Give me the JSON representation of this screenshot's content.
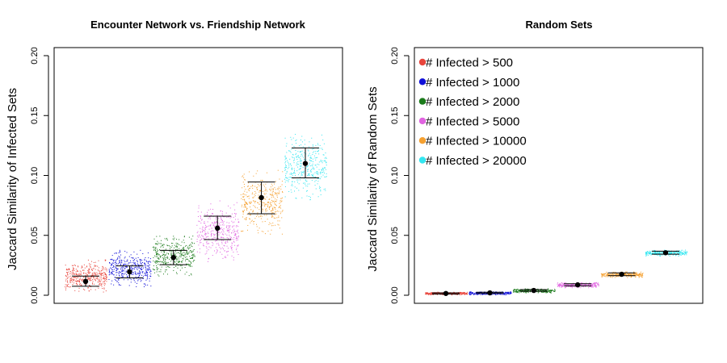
{
  "chart_data": [
    {
      "type": "scatter",
      "title": "Encounter Network vs. Friendship Network",
      "xlabel": "",
      "ylabel": "Jaccard Similarity of Infected Sets",
      "ylim": [
        0,
        0.2
      ],
      "yticks": [
        "0.00",
        "0.05",
        "0.10",
        "0.15",
        "0.20"
      ],
      "grid": false,
      "series": [
        {
          "color": "#e8453c",
          "mean": 0.0115,
          "ci_low": 0.0075,
          "ci_high": 0.016,
          "spread_low": 0.003,
          "spread_high": 0.03
        },
        {
          "color": "#1010d8",
          "mean": 0.0195,
          "ci_low": 0.0145,
          "ci_high": 0.0245,
          "spread_low": 0.007,
          "spread_high": 0.038
        },
        {
          "color": "#1a7a1a",
          "mean": 0.0315,
          "ci_low": 0.0255,
          "ci_high": 0.0375,
          "spread_low": 0.016,
          "spread_high": 0.05
        },
        {
          "color": "#e063e0",
          "mean": 0.056,
          "ci_low": 0.0465,
          "ci_high": 0.066,
          "spread_low": 0.028,
          "spread_high": 0.08
        },
        {
          "color": "#f5a030",
          "mean": 0.0815,
          "ci_low": 0.068,
          "ci_high": 0.0945,
          "spread_low": 0.05,
          "spread_high": 0.105
        },
        {
          "color": "#33e6f0",
          "mean": 0.11,
          "ci_low": 0.098,
          "ci_high": 0.123,
          "spread_low": 0.08,
          "spread_high": 0.135
        }
      ]
    },
    {
      "type": "scatter",
      "title": "Random Sets",
      "xlabel": "",
      "ylabel": "Jaccard Similarity of Random Sets",
      "ylim": [
        0,
        0.2
      ],
      "yticks": [
        "0.00",
        "0.05",
        "0.10",
        "0.15",
        "0.20"
      ],
      "grid": false,
      "legend": {
        "placement": "top-left",
        "entries": [
          {
            "label": "# Infected > 500",
            "color": "#e8453c"
          },
          {
            "label": "# Infected > 1000",
            "color": "#1010d8"
          },
          {
            "label": "# Infected > 2000",
            "color": "#1a7a1a"
          },
          {
            "label": "# Infected > 5000",
            "color": "#e063e0"
          },
          {
            "label": "# Infected > 10000",
            "color": "#f5a030"
          },
          {
            "label": "# Infected > 20000",
            "color": "#33e6f0"
          }
        ]
      },
      "series": [
        {
          "color": "#e8453c",
          "mean": 0.0015,
          "ci_low": 0.001,
          "ci_high": 0.002,
          "spread_low": 0.0005,
          "spread_high": 0.003
        },
        {
          "color": "#1010d8",
          "mean": 0.002,
          "ci_low": 0.0015,
          "ci_high": 0.0025,
          "spread_low": 0.0005,
          "spread_high": 0.0035
        },
        {
          "color": "#1a7a1a",
          "mean": 0.004,
          "ci_low": 0.0033,
          "ci_high": 0.0047,
          "spread_low": 0.0022,
          "spread_high": 0.0058
        },
        {
          "color": "#e063e0",
          "mean": 0.0087,
          "ci_low": 0.0078,
          "ci_high": 0.0096,
          "spread_low": 0.0065,
          "spread_high": 0.011
        },
        {
          "color": "#f5a030",
          "mean": 0.0175,
          "ci_low": 0.0163,
          "ci_high": 0.0187,
          "spread_low": 0.015,
          "spread_high": 0.02
        },
        {
          "color": "#33e6f0",
          "mean": 0.0355,
          "ci_low": 0.0343,
          "ci_high": 0.0368,
          "spread_low": 0.033,
          "spread_high": 0.038
        }
      ]
    }
  ]
}
